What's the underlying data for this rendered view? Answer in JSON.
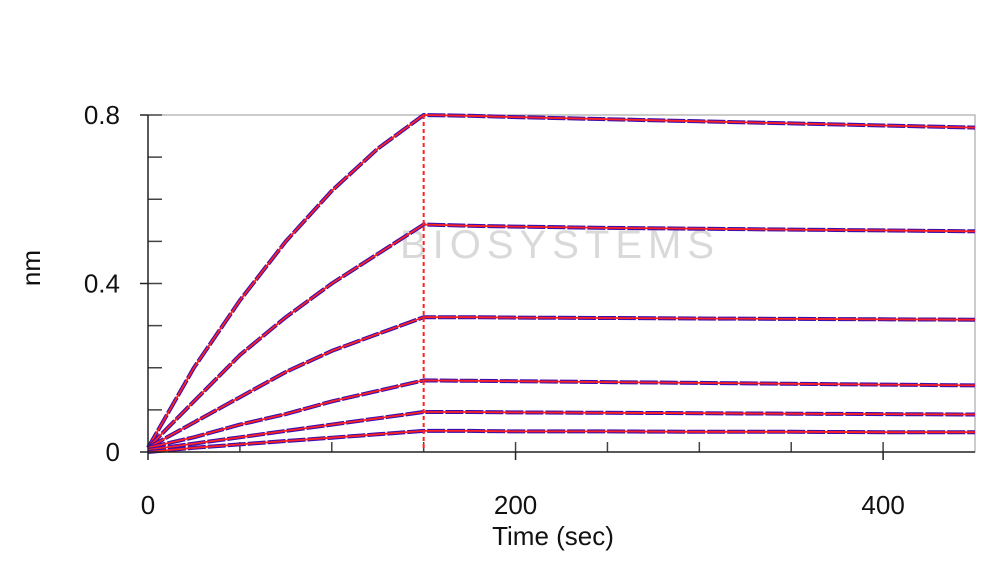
{
  "chart_data": {
    "type": "line",
    "title": "",
    "xlabel": "Time (sec)",
    "ylabel": "nm",
    "xlim": [
      0,
      450
    ],
    "ylim": [
      0,
      0.8
    ],
    "x_ticks": [
      0,
      200,
      400
    ],
    "y_ticks": [
      0,
      0.4,
      0.8
    ],
    "association_end": 150,
    "grid": false,
    "watermark": "BIOSYSTEMS",
    "colors": {
      "raw": "#3b0fb0",
      "fit": "#ff2020",
      "divider": "#ff2020"
    },
    "series": [
      {
        "x": [
          0,
          25,
          50,
          75,
          100,
          125,
          150,
          175,
          200,
          250,
          300,
          350,
          400,
          450
        ],
        "values": [
          0.01,
          0.2,
          0.36,
          0.5,
          0.62,
          0.72,
          0.8,
          0.798,
          0.795,
          0.79,
          0.785,
          0.78,
          0.775,
          0.77
        ]
      },
      {
        "x": [
          0,
          25,
          50,
          75,
          100,
          125,
          150,
          175,
          200,
          250,
          300,
          350,
          400,
          450
        ],
        "values": [
          0.01,
          0.12,
          0.23,
          0.32,
          0.4,
          0.47,
          0.54,
          0.537,
          0.535,
          0.532,
          0.53,
          0.528,
          0.526,
          0.524
        ]
      },
      {
        "x": [
          0,
          25,
          50,
          75,
          100,
          125,
          150,
          175,
          200,
          250,
          300,
          350,
          400,
          450
        ],
        "values": [
          0.01,
          0.07,
          0.13,
          0.19,
          0.24,
          0.28,
          0.32,
          0.32,
          0.319,
          0.318,
          0.317,
          0.316,
          0.315,
          0.314
        ]
      },
      {
        "x": [
          0,
          25,
          50,
          75,
          100,
          125,
          150,
          175,
          200,
          250,
          300,
          350,
          400,
          450
        ],
        "values": [
          0.01,
          0.035,
          0.065,
          0.09,
          0.12,
          0.145,
          0.17,
          0.169,
          0.168,
          0.166,
          0.164,
          0.162,
          0.16,
          0.158
        ]
      },
      {
        "x": [
          0,
          25,
          50,
          75,
          100,
          125,
          150,
          175,
          200,
          250,
          300,
          350,
          400,
          450
        ],
        "values": [
          0.005,
          0.02,
          0.035,
          0.05,
          0.065,
          0.08,
          0.095,
          0.095,
          0.094,
          0.093,
          0.092,
          0.091,
          0.09,
          0.089
        ]
      },
      {
        "x": [
          0,
          25,
          50,
          75,
          100,
          125,
          150,
          175,
          200,
          250,
          300,
          350,
          400,
          450
        ],
        "values": [
          0.0,
          0.01,
          0.018,
          0.026,
          0.034,
          0.042,
          0.05,
          0.05,
          0.049,
          0.049,
          0.048,
          0.048,
          0.047,
          0.047
        ]
      }
    ]
  }
}
